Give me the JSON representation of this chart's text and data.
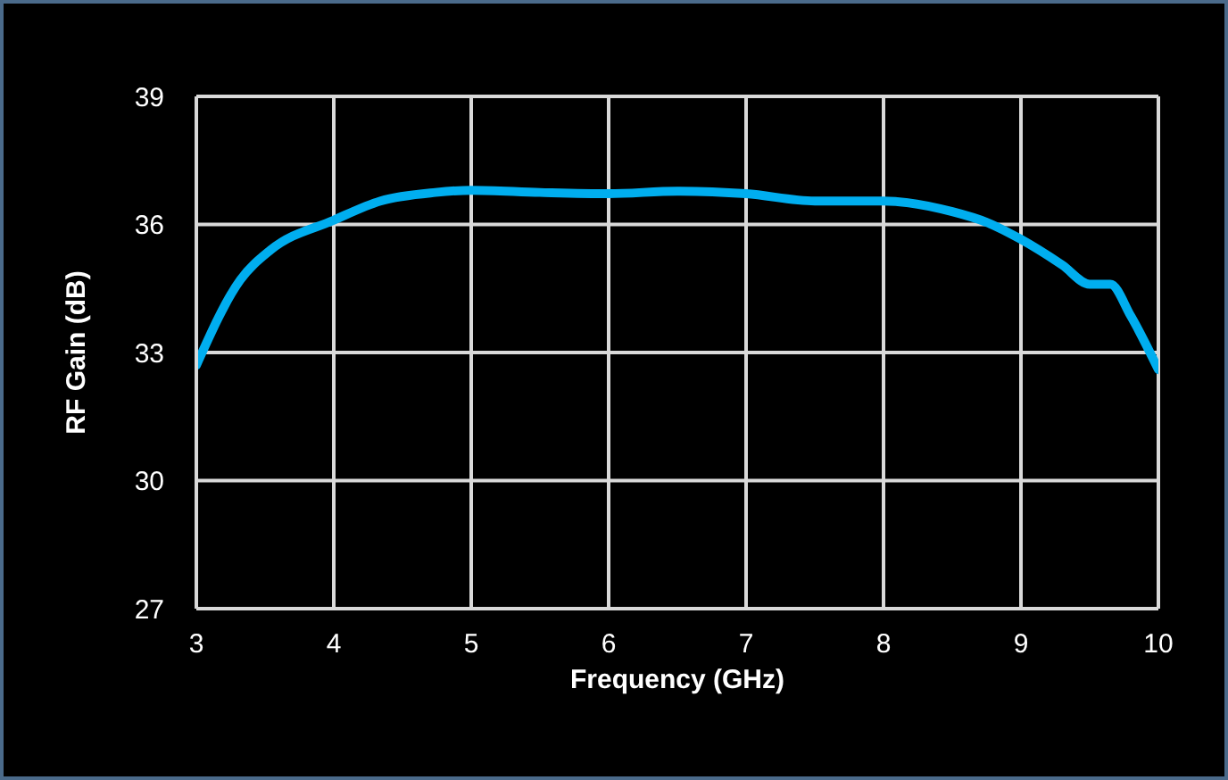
{
  "chart_data": {
    "type": "line",
    "xlabel": "Frequency (GHz)",
    "ylabel": "RF Gain (dB)",
    "x": [
      3,
      3.32,
      3.54,
      4,
      4.34,
      4.74,
      5,
      5.5,
      6,
      6.5,
      7,
      7.5,
      8,
      8.5,
      8.75,
      9,
      9.3,
      9.5,
      9.65,
      9.8,
      10
    ],
    "series": [
      {
        "color": "#00aeef",
        "values": [
          32.7,
          34.7,
          35.4,
          36.1,
          36.55,
          36.75,
          36.8,
          36.75,
          36.72,
          36.78,
          36.72,
          36.55,
          36.55,
          36.3,
          36.05,
          35.65,
          35.05,
          34.6,
          34.6,
          33.85,
          32.6
        ]
      }
    ],
    "xlim": [
      3,
      10
    ],
    "xticks": [
      3,
      4,
      5,
      6,
      7,
      8,
      9,
      10
    ],
    "ylim": [
      27,
      39
    ],
    "yticks": [
      27,
      30,
      33,
      36,
      39
    ],
    "grid": true,
    "legend": false,
    "marker": "none",
    "line_style": "solid"
  }
}
